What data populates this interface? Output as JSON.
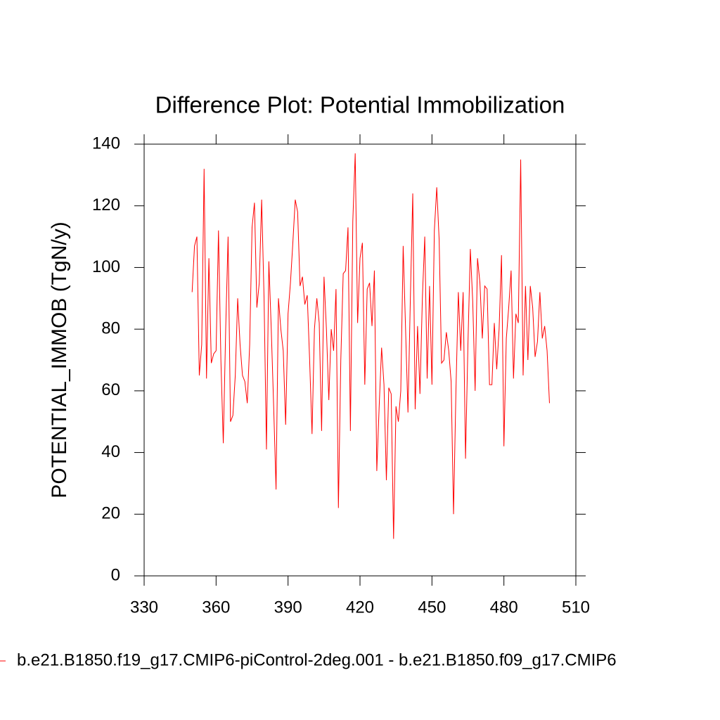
{
  "chart_data": {
    "type": "line",
    "title": "Difference Plot: Potential Immobilization",
    "y_label": "POTENTIAL_IMMOB  (TgN/y)",
    "x": [
      350,
      351,
      352,
      353,
      354,
      355,
      356,
      357,
      358,
      359,
      360,
      361,
      362,
      363,
      364,
      365,
      366,
      367,
      368,
      369,
      370,
      371,
      372,
      373,
      374,
      375,
      376,
      377,
      378,
      379,
      380,
      381,
      382,
      383,
      384,
      385,
      386,
      387,
      388,
      389,
      390,
      391,
      392,
      393,
      394,
      395,
      396,
      397,
      398,
      399,
      400,
      401,
      402,
      403,
      404,
      405,
      406,
      407,
      408,
      409,
      410,
      411,
      412,
      413,
      414,
      415,
      416,
      417,
      418,
      419,
      420,
      421,
      422,
      423,
      424,
      425,
      426,
      427,
      428,
      429,
      430,
      431,
      432,
      433,
      434,
      435,
      436,
      437,
      438,
      439,
      440,
      441,
      442,
      443,
      444,
      445,
      446,
      447,
      448,
      449,
      450,
      451,
      452,
      453,
      454,
      455,
      456,
      457,
      458,
      459,
      460,
      461,
      462,
      463,
      464,
      465,
      466,
      467,
      468,
      469,
      470,
      471,
      472,
      473,
      474,
      475,
      476,
      477,
      478,
      479,
      480,
      481,
      482,
      483,
      484,
      485,
      486,
      487,
      488,
      489,
      490,
      491,
      492,
      493,
      494,
      495,
      496,
      497,
      498,
      499
    ],
    "series": [
      {
        "name": "b.e21.B1850.f19_g17.CMIP6-piControl-2deg.001 - b.e21.B1850.f09_g17.CMIP6",
        "color": "#ff0000",
        "values": [
          92,
          107,
          110,
          65,
          75,
          132,
          64,
          103,
          69,
          72,
          73,
          112,
          70,
          43,
          80,
          110,
          50,
          52,
          65,
          90,
          75,
          65,
          63,
          56,
          75,
          113,
          121,
          87,
          95,
          122,
          90,
          41,
          102,
          80,
          55,
          28,
          90,
          80,
          73,
          49,
          85,
          95,
          108,
          122,
          118,
          94,
          97,
          88,
          91,
          70,
          46,
          80,
          90,
          82,
          47,
          97,
          80,
          57,
          80,
          73,
          93,
          22,
          70,
          98,
          99,
          113,
          47,
          115,
          137,
          82,
          103,
          108,
          62,
          93,
          95,
          81,
          99,
          34,
          55,
          74,
          62,
          31,
          61,
          59,
          12,
          55,
          50,
          60,
          107,
          80,
          53,
          90,
          124,
          54,
          81,
          59,
          90,
          110,
          64,
          94,
          62,
          112,
          126,
          109,
          69,
          70,
          79,
          73,
          63,
          20,
          60,
          92,
          73,
          92,
          38,
          75,
          106,
          89,
          60,
          103,
          95,
          77,
          94,
          93,
          62,
          62,
          82,
          67,
          80,
          104,
          42,
          77,
          87,
          99,
          64,
          85,
          82,
          135,
          65,
          94,
          70,
          94,
          87,
          71,
          76,
          92,
          77,
          81,
          73,
          56
        ]
      }
    ],
    "xlim": [
      330,
      510
    ],
    "xticks": [
      330,
      360,
      390,
      420,
      450,
      480,
      510
    ],
    "ylim": [
      0,
      140
    ],
    "yticks": [
      0,
      20,
      40,
      60,
      80,
      100,
      120,
      140
    ]
  }
}
